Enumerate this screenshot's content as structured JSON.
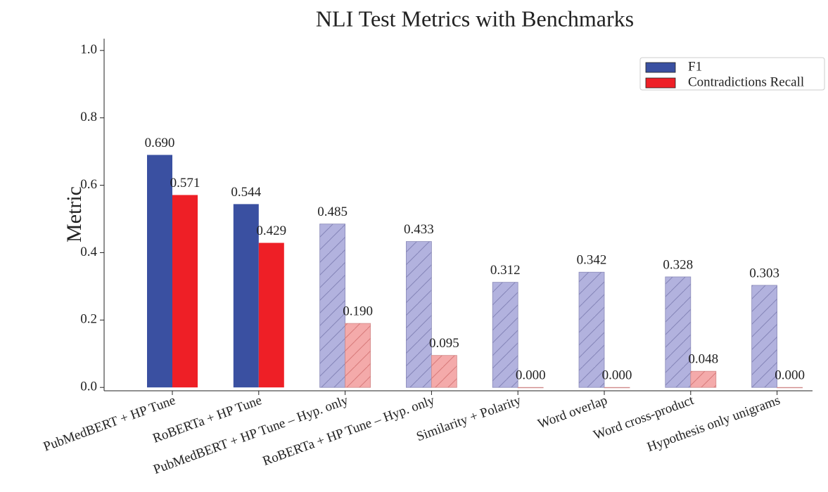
{
  "chart_data": {
    "type": "bar",
    "title": "NLI Test Metrics with Benchmarks",
    "y_label": "Metric",
    "categories": [
      "PubMedBERT + HP Tune",
      "RoBERTa + HP Tune",
      "PubMedBERT + HP Tune – Hyp. only",
      "RoBERTa + HP Tune – Hyp. only",
      "Similarity + Polarity",
      "Word overlap",
      "Word cross-product",
      "Hypothesis only unigrams"
    ],
    "series": [
      {
        "name": "F1",
        "color": "#3a50a1",
        "colors": [
          "#3a50a1",
          "#3a50a1",
          "#b2b2de",
          "#b2b2de",
          "#b2b2de",
          "#b2b2de",
          "#b2b2de",
          "#b2b2de"
        ],
        "values": [
          0.69,
          0.544,
          0.485,
          0.433,
          0.312,
          0.342,
          0.328,
          0.303
        ],
        "value_labels": [
          "0.690",
          "0.544",
          "0.485",
          "0.433",
          "0.312",
          "0.342",
          "0.328",
          "0.303"
        ]
      },
      {
        "name": "Contradictions Recall",
        "color": "#ee1f26",
        "colors": [
          "#ee1f26",
          "#ee1f26",
          "#f4aaaa",
          "#f4aaaa",
          "#f4aaaa",
          "#f4aaaa",
          "#f4aaaa",
          "#f4aaaa"
        ],
        "values": [
          0.571,
          0.429,
          0.19,
          0.095,
          0,
          0,
          0.048,
          0
        ],
        "value_labels": [
          "0.571",
          "0.429",
          "0.190",
          "0.095",
          "0.000",
          "0.000",
          "0.048",
          "0.000"
        ]
      }
    ],
    "hatched": [
      false,
      false,
      true,
      true,
      true,
      true,
      true,
      true
    ],
    "ylim": [
      -0.01,
      1.035
    ],
    "yticks": [
      {
        "value": 0,
        "label": "0.0"
      },
      {
        "value": 0.2,
        "label": "0.2"
      },
      {
        "value": 0.4,
        "label": "0.4"
      },
      {
        "value": 0.6,
        "label": "0.6"
      },
      {
        "value": 0.8,
        "label": "0.8"
      },
      {
        "value": 1,
        "label": "1.0"
      }
    ],
    "legend": "upper right"
  }
}
